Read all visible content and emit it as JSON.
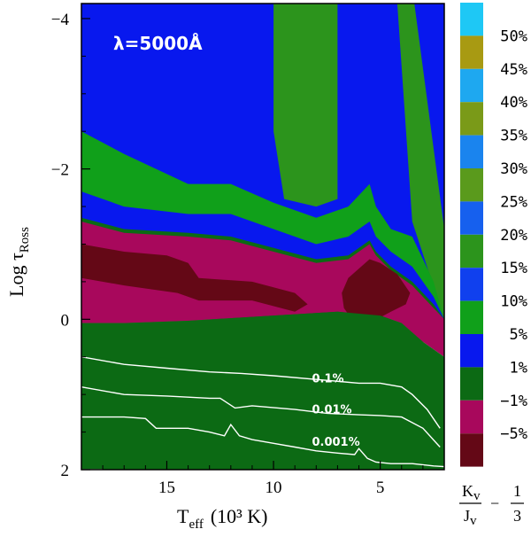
{
  "chart_data": {
    "type": "heatmap",
    "title": "λ=5000Å",
    "xlabel": "T",
    "xlabel_sub": "eff",
    "xlabel_rest": "(10³ K)",
    "ylabel": "Log τ",
    "ylabel_sub": "Ross",
    "xlim": [
      19,
      2
    ],
    "ylim": [
      2,
      -4.2
    ],
    "x_ticks": [
      {
        "value": 15,
        "label": "15"
      },
      {
        "value": 10,
        "label": "10"
      },
      {
        "value": 5,
        "label": "5"
      }
    ],
    "y_ticks": [
      {
        "value": -4,
        "label": "−4"
      },
      {
        "value": -2,
        "label": "−2"
      },
      {
        "value": 0,
        "label": "0"
      },
      {
        "value": 2,
        "label": "2"
      }
    ],
    "colorbar": {
      "title_parts": [
        "K",
        "v",
        "J",
        "v",
        "− ",
        "1",
        "3"
      ],
      "levels": [
        {
          "label": "50%",
          "color": "#1ec8f5"
        },
        {
          "label": "45%",
          "color": "#a89a12"
        },
        {
          "label": "40%",
          "color": "#1ea8f0"
        },
        {
          "label": "35%",
          "color": "#7a9a18"
        },
        {
          "label": "30%",
          "color": "#1a84ee"
        },
        {
          "label": "25%",
          "color": "#5a9a1c"
        },
        {
          "label": "20%",
          "color": "#1660ee"
        },
        {
          "label": "15%",
          "color": "#2c941c"
        },
        {
          "label": "10%",
          "color": "#1040ee"
        },
        {
          "label": "5%",
          "color": "#10a01a"
        },
        {
          "label": "1%",
          "color": "#0818ee"
        },
        {
          "label": "−1%",
          "color": "#0c6a14"
        },
        {
          "label": "−5%",
          "color": "#a8085c"
        },
        {
          "label": "",
          "color": "#640816"
        }
      ]
    },
    "regions": [
      {
        "name": "level-1-blue",
        "color": "#0818ee",
        "points": [
          [
            19,
            -4.2
          ],
          [
            2,
            -4.2
          ],
          [
            2,
            0
          ],
          [
            19,
            0
          ]
        ]
      },
      {
        "name": "level-15-green",
        "color": "#2c941c",
        "points": [
          [
            10,
            -4.2
          ],
          [
            7,
            -4.2
          ],
          [
            7,
            -1.6
          ],
          [
            8,
            -1.5
          ],
          [
            9.5,
            -1.6
          ],
          [
            10,
            -2.5
          ]
        ]
      },
      {
        "name": "level-15-green-right",
        "color": "#2c941c",
        "points": [
          [
            4.2,
            -4.2
          ],
          [
            3.4,
            -4.2
          ],
          [
            2,
            -1.2
          ],
          [
            2,
            0
          ],
          [
            3.5,
            -1.3
          ]
        ]
      },
      {
        "name": "level-10-green",
        "color": "#10a01a",
        "points": [
          [
            19,
            -2.5
          ],
          [
            17,
            -2.2
          ],
          [
            14,
            -1.8
          ],
          [
            12,
            -1.8
          ],
          [
            10,
            -1.55
          ],
          [
            8,
            -1.35
          ],
          [
            6.5,
            -1.5
          ],
          [
            5.5,
            -1.8
          ],
          [
            5.2,
            -1.5
          ],
          [
            4.5,
            -1.2
          ],
          [
            3.5,
            -1.1
          ],
          [
            2.5,
            -0.5
          ],
          [
            2,
            0
          ],
          [
            2,
            0.3
          ],
          [
            19,
            0.3
          ]
        ]
      },
      {
        "name": "level-5-blue",
        "color": "#0818ee",
        "points": [
          [
            19,
            -1.7
          ],
          [
            17,
            -1.5
          ],
          [
            14,
            -1.4
          ],
          [
            12,
            -1.4
          ],
          [
            10,
            -1.2
          ],
          [
            8,
            -1.0
          ],
          [
            6.5,
            -1.1
          ],
          [
            5.5,
            -1.3
          ],
          [
            5.2,
            -1.1
          ],
          [
            4.5,
            -0.9
          ],
          [
            3.5,
            -0.7
          ],
          [
            2.5,
            -0.3
          ],
          [
            2,
            0
          ],
          [
            19,
            0
          ]
        ]
      },
      {
        "name": "level-1-darkgreen-top",
        "color": "#0c6a14",
        "points": [
          [
            19,
            -1.35
          ],
          [
            17,
            -1.2
          ],
          [
            14,
            -1.15
          ],
          [
            12,
            -1.1
          ],
          [
            10,
            -0.95
          ],
          [
            8,
            -0.8
          ],
          [
            6.5,
            -0.85
          ],
          [
            5.5,
            -1.05
          ],
          [
            5.2,
            -0.9
          ],
          [
            4.5,
            -0.7
          ],
          [
            3.5,
            -0.5
          ],
          [
            2.5,
            -0.2
          ],
          [
            2,
            0
          ],
          [
            19,
            0
          ]
        ]
      },
      {
        "name": "level-neg1-magenta",
        "color": "#a8085c",
        "points": [
          [
            19,
            -1.3
          ],
          [
            17,
            -1.15
          ],
          [
            14,
            -1.1
          ],
          [
            12,
            -1.05
          ],
          [
            10,
            -0.9
          ],
          [
            8,
            -0.75
          ],
          [
            6.5,
            -0.8
          ],
          [
            5.5,
            -1.0
          ],
          [
            5.2,
            -0.85
          ],
          [
            4.5,
            -0.65
          ],
          [
            3.5,
            -0.45
          ],
          [
            2.5,
            -0.15
          ],
          [
            2,
            0
          ],
          [
            2,
            0.5
          ],
          [
            3,
            0.3
          ],
          [
            4,
            0.05
          ],
          [
            5,
            -0.05
          ],
          [
            7,
            -0.1
          ],
          [
            10,
            -0.05
          ],
          [
            14,
            0.02
          ],
          [
            17,
            0.05
          ],
          [
            19,
            0.05
          ]
        ]
      },
      {
        "name": "level-neg5-darkred-left",
        "color": "#640816",
        "points": [
          [
            19,
            -1.0
          ],
          [
            17,
            -0.9
          ],
          [
            15,
            -0.85
          ],
          [
            14,
            -0.75
          ],
          [
            13.5,
            -0.55
          ],
          [
            11,
            -0.5
          ],
          [
            9,
            -0.35
          ],
          [
            8.4,
            -0.2
          ],
          [
            9,
            -0.1
          ],
          [
            11,
            -0.25
          ],
          [
            13.5,
            -0.25
          ],
          [
            14.5,
            -0.35
          ],
          [
            17,
            -0.45
          ],
          [
            19,
            -0.55
          ]
        ]
      },
      {
        "name": "level-neg5-darkred-right",
        "color": "#640816",
        "points": [
          [
            6.5,
            -0.55
          ],
          [
            5.5,
            -0.8
          ],
          [
            5.0,
            -0.75
          ],
          [
            4.2,
            -0.6
          ],
          [
            3.6,
            -0.35
          ],
          [
            3.8,
            -0.2
          ],
          [
            4.5,
            -0.1
          ],
          [
            5.5,
            0.05
          ],
          [
            6.2,
            0.05
          ],
          [
            6.7,
            -0.15
          ],
          [
            6.8,
            -0.35
          ]
        ]
      },
      {
        "name": "level-neg1-darkgreen-bottom",
        "color": "#0c6a14",
        "points": [
          [
            19,
            0.05
          ],
          [
            17,
            0.05
          ],
          [
            14,
            0.02
          ],
          [
            10,
            -0.05
          ],
          [
            7,
            -0.1
          ],
          [
            5,
            -0.05
          ],
          [
            4,
            0.05
          ],
          [
            3,
            0.3
          ],
          [
            2,
            0.5
          ],
          [
            2,
            2
          ],
          [
            19,
            2
          ]
        ]
      }
    ],
    "contours": [
      {
        "label": "0.1%",
        "label_at": [
          8.2,
          0.84
        ],
        "points": [
          [
            19,
            0.5
          ],
          [
            17,
            0.6
          ],
          [
            15,
            0.65
          ],
          [
            13,
            0.7
          ],
          [
            11.5,
            0.72
          ],
          [
            10,
            0.75
          ],
          [
            8,
            0.8
          ],
          [
            6,
            0.85
          ],
          [
            5,
            0.85
          ],
          [
            4,
            0.9
          ],
          [
            3.5,
            1.0
          ],
          [
            2.8,
            1.2
          ],
          [
            2.2,
            1.45
          ]
        ]
      },
      {
        "label": "0.01%",
        "label_at": [
          8.2,
          1.25
        ],
        "points": [
          [
            19,
            0.9
          ],
          [
            17,
            1.0
          ],
          [
            15,
            1.02
          ],
          [
            13,
            1.05
          ],
          [
            12.5,
            1.05
          ],
          [
            11.8,
            1.18
          ],
          [
            11,
            1.15
          ],
          [
            9,
            1.2
          ],
          [
            7.5,
            1.25
          ],
          [
            6,
            1.27
          ],
          [
            5,
            1.28
          ],
          [
            4,
            1.3
          ],
          [
            3,
            1.45
          ],
          [
            2.2,
            1.7
          ]
        ]
      },
      {
        "label": "0.001%",
        "label_at": [
          8.2,
          1.68
        ],
        "points": [
          [
            19,
            1.3
          ],
          [
            17,
            1.3
          ],
          [
            16,
            1.32
          ],
          [
            15.5,
            1.45
          ],
          [
            14,
            1.45
          ],
          [
            13,
            1.5
          ],
          [
            12.3,
            1.55
          ],
          [
            12,
            1.4
          ],
          [
            11.6,
            1.55
          ],
          [
            11,
            1.6
          ],
          [
            10,
            1.65
          ],
          [
            9,
            1.7
          ],
          [
            8,
            1.75
          ],
          [
            7,
            1.78
          ],
          [
            6.2,
            1.8
          ],
          [
            6,
            1.72
          ],
          [
            5.6,
            1.85
          ],
          [
            5.2,
            1.9
          ],
          [
            4.5,
            1.92
          ],
          [
            3.5,
            1.92
          ],
          [
            2.5,
            1.95
          ],
          [
            2,
            1.96
          ]
        ]
      },
      {
        "label": "",
        "label_at": null,
        "points": [
          [
            19,
            2.0
          ],
          [
            18,
            2.0
          ]
        ]
      }
    ]
  }
}
